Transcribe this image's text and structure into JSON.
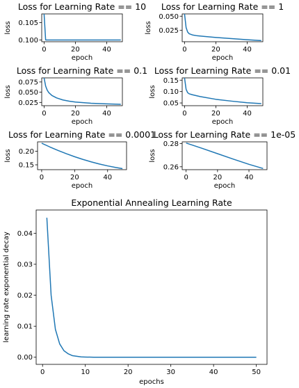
{
  "figure": {
    "line_color": "#1f77b4"
  },
  "chart_data": [
    {
      "type": "line",
      "title": "Loss for Learning Rate == 10",
      "xlabel": "epoch",
      "ylabel": "loss",
      "xlim": [
        -1.5,
        50
      ],
      "ylim": [
        0.0995,
        0.1075
      ],
      "xticks": [
        0,
        20,
        40
      ],
      "yticks": [
        0.1,
        0.105
      ],
      "ytick_labels": [
        "0.100",
        "0.105"
      ],
      "x": [
        0,
        1,
        2,
        5,
        10,
        20,
        30,
        40,
        49
      ],
      "y": [
        0.1075,
        0.1,
        0.1,
        0.1,
        0.1,
        0.1,
        0.1,
        0.1,
        0.1
      ]
    },
    {
      "type": "line",
      "title": "Loss for Learning Rate == 1",
      "xlabel": "epoch",
      "ylabel": "loss",
      "xlim": [
        -1.5,
        50
      ],
      "ylim": [
        0.005,
        0.054
      ],
      "xticks": [
        0,
        20,
        40
      ],
      "yticks": [
        0.025,
        0.05
      ],
      "ytick_labels": [
        "0.025",
        "0.050"
      ],
      "x": [
        0,
        1,
        2,
        3,
        5,
        8,
        12,
        20,
        30,
        40,
        49
      ],
      "y": [
        0.054,
        0.03,
        0.022,
        0.019,
        0.017,
        0.0155,
        0.0145,
        0.0125,
        0.0105,
        0.0085,
        0.007
      ]
    },
    {
      "type": "line",
      "title": "Loss for Learning Rate == 0.1",
      "xlabel": "epoch",
      "ylabel": "loss",
      "xlim": [
        -1.5,
        50
      ],
      "ylim": [
        0.017,
        0.085
      ],
      "xticks": [
        0,
        20,
        40
      ],
      "yticks": [
        0.025,
        0.05,
        0.075
      ],
      "ytick_labels": [
        "0.025",
        "0.050",
        "0.075"
      ],
      "x": [
        0,
        1,
        2,
        3,
        5,
        8,
        12,
        16,
        20,
        25,
        30,
        40,
        49
      ],
      "y": [
        0.085,
        0.065,
        0.055,
        0.049,
        0.042,
        0.036,
        0.031,
        0.028,
        0.026,
        0.0245,
        0.023,
        0.0215,
        0.0205
      ]
    },
    {
      "type": "line",
      "title": "Loss for Learning Rate == 0.01",
      "xlabel": "epoch",
      "ylabel": "loss",
      "xlim": [
        -1.5,
        50
      ],
      "ylim": [
        0.038,
        0.16
      ],
      "xticks": [
        0,
        20,
        40
      ],
      "yticks": [
        0.05,
        0.1,
        0.15
      ],
      "ytick_labels": [
        "0.05",
        "0.10",
        "0.15"
      ],
      "x": [
        0,
        1,
        2,
        3,
        5,
        10,
        20,
        30,
        40,
        49
      ],
      "y": [
        0.16,
        0.11,
        0.095,
        0.09,
        0.086,
        0.078,
        0.066,
        0.058,
        0.051,
        0.047
      ]
    },
    {
      "type": "line",
      "title": "Loss for Learning Rate == 0.0001",
      "xlabel": "epoch",
      "ylabel": "loss",
      "xlim": [
        -2.5,
        51.5
      ],
      "ylim": [
        0.132,
        0.235
      ],
      "xticks": [
        0,
        20,
        40
      ],
      "yticks": [
        0.15,
        0.2
      ],
      "ytick_labels": [
        "0.15",
        "0.20"
      ],
      "x": [
        0,
        5,
        10,
        15,
        20,
        25,
        30,
        35,
        40,
        45,
        49
      ],
      "y": [
        0.23,
        0.216,
        0.203,
        0.191,
        0.18,
        0.17,
        0.161,
        0.153,
        0.146,
        0.14,
        0.136
      ]
    },
    {
      "type": "line",
      "title": "Loss for Learning Rate == 1e-05",
      "xlabel": "epoch",
      "ylabel": "loss",
      "xlim": [
        -2.5,
        51.5
      ],
      "ylim": [
        0.2575,
        0.2815
      ],
      "xticks": [
        0,
        20,
        40
      ],
      "yticks": [
        0.26,
        0.28
      ],
      "ytick_labels": [
        "0.26",
        "0.28"
      ],
      "x": [
        0,
        10,
        20,
        30,
        40,
        49
      ],
      "y": [
        0.2805,
        0.276,
        0.2713,
        0.2666,
        0.2621,
        0.2585
      ]
    },
    {
      "type": "line",
      "title": "Exponential Annealing Learning Rate",
      "xlabel": "epochs",
      "ylabel": "learning rate exponential decay",
      "xlim": [
        -1.5,
        52.5
      ],
      "ylim": [
        -0.0023,
        0.0475
      ],
      "xticks": [
        0,
        10,
        20,
        30,
        40,
        50
      ],
      "yticks": [
        0,
        0.01,
        0.02,
        0.03,
        0.04
      ],
      "ytick_labels": [
        "0.00",
        "0.01",
        "0.02",
        "0.03",
        "0.04"
      ],
      "x": [
        1,
        2,
        3,
        4,
        5,
        6,
        7,
        8,
        9,
        10,
        12,
        15,
        20,
        30,
        40,
        50
      ],
      "y": [
        0.045,
        0.02,
        0.009,
        0.0043,
        0.0021,
        0.0011,
        0.0005,
        0.0003,
        0.0001,
        6e-05,
        1e-05,
        0,
        0,
        0,
        0,
        0
      ]
    }
  ]
}
